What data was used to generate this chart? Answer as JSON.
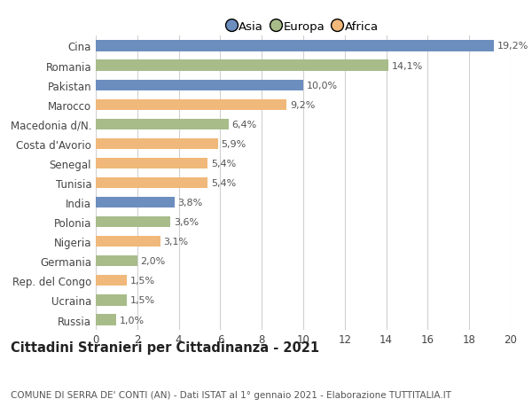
{
  "title": "Cittadini Stranieri per Cittadinanza - 2021",
  "subtitle": "COMUNE DI SERRA DE' CONTI (AN) - Dati ISTAT al 1° gennaio 2021 - Elaborazione TUTTITALIA.IT",
  "categories": [
    "Cina",
    "Romania",
    "Pakistan",
    "Marocco",
    "Macedonia d/N.",
    "Costa d'Avorio",
    "Senegal",
    "Tunisia",
    "India",
    "Polonia",
    "Nigeria",
    "Germania",
    "Rep. del Congo",
    "Ucraina",
    "Russia"
  ],
  "values": [
    19.2,
    14.1,
    10.0,
    9.2,
    6.4,
    5.9,
    5.4,
    5.4,
    3.8,
    3.6,
    3.1,
    2.0,
    1.5,
    1.5,
    1.0
  ],
  "labels": [
    "19,2%",
    "14,1%",
    "10,0%",
    "9,2%",
    "6,4%",
    "5,9%",
    "5,4%",
    "5,4%",
    "3,8%",
    "3,6%",
    "3,1%",
    "2,0%",
    "1,5%",
    "1,5%",
    "1,0%"
  ],
  "colors": [
    "#6c8ebf",
    "#a8bc8a",
    "#6c8ebf",
    "#f0b87a",
    "#a8bc8a",
    "#f0b87a",
    "#f0b87a",
    "#f0b87a",
    "#6c8ebf",
    "#a8bc8a",
    "#f0b87a",
    "#a8bc8a",
    "#f0b87a",
    "#a8bc8a",
    "#a8bc8a"
  ],
  "legend_labels": [
    "Asia",
    "Europa",
    "Africa"
  ],
  "legend_colors": [
    "#6c8ebf",
    "#a8bc8a",
    "#f0b87a"
  ],
  "xlim": [
    0,
    20
  ],
  "xticks": [
    0,
    2,
    4,
    6,
    8,
    10,
    12,
    14,
    16,
    18,
    20
  ],
  "background_color": "#ffffff",
  "grid_color": "#d0d0d0",
  "bar_height": 0.55,
  "label_fontsize": 8,
  "tick_fontsize": 8.5,
  "title_fontsize": 10.5,
  "subtitle_fontsize": 7.5
}
